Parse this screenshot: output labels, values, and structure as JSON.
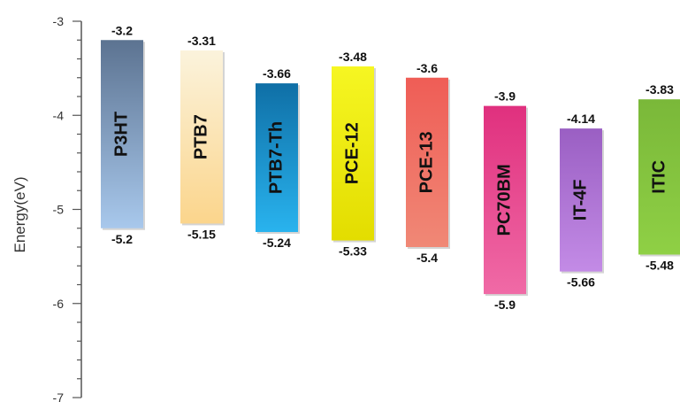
{
  "chart_data": {
    "type": "bar",
    "title": "",
    "xlabel": "",
    "ylabel": "Energy(eV)",
    "ylim": [
      -7,
      -3
    ],
    "yticks": [
      -3,
      -4,
      -5,
      -6,
      -7
    ],
    "grid": false,
    "legend": "none",
    "categories": [
      "P3HT",
      "PTB7",
      "PTB7-Th",
      "PCE-12",
      "PCE-13",
      "PC70BM",
      "IT-4F",
      "ITIC"
    ],
    "series": [
      {
        "values_top": [
          -3.2,
          -3.31,
          -3.66,
          -3.48,
          -3.6,
          -3.9,
          -4.14,
          -3.83
        ],
        "values_bottom": [
          -5.2,
          -5.15,
          -5.24,
          -5.33,
          -5.4,
          -5.9,
          -5.66,
          -5.48
        ]
      }
    ],
    "top_labels": [
      "-3.2",
      "-3.31",
      "-3.66",
      "-3.48",
      "-3.6",
      "-3.9",
      "-4.14",
      "-3.83"
    ],
    "bottom_labels": [
      "-5.2",
      "-5.15",
      "-5.24",
      "-5.33",
      "-5.4",
      "-5.9",
      "-5.66",
      "-5.48"
    ],
    "colors": [
      [
        "#5c7391",
        "#a8c8ec"
      ],
      [
        "#fbf3dc",
        "#fbd58c"
      ],
      [
        "#0f6fa6",
        "#29b3ee"
      ],
      [
        "#f6f622",
        "#e3dd00"
      ],
      [
        "#ef5d56",
        "#f08876"
      ],
      [
        "#e0307e",
        "#f06aa6"
      ],
      [
        "#9a5fc3",
        "#c38be6"
      ],
      [
        "#7ab839",
        "#8fd045"
      ]
    ]
  }
}
